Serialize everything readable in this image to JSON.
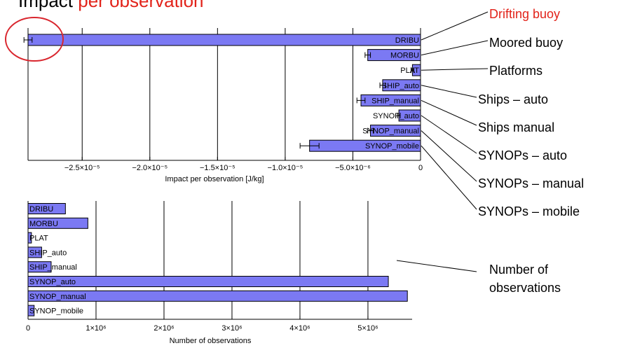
{
  "title": {
    "prefix": "Impact",
    "highlight": "per observation"
  },
  "colors": {
    "bar": "#7b79f3",
    "highlight": "#e2231a",
    "axis": "#000000",
    "circle": "#d9262e"
  },
  "chart_data": [
    {
      "type": "bar",
      "orientation": "horizontal",
      "categories": [
        "DRIBU",
        "MORBU",
        "PLAT",
        "SHIP_auto",
        "SHIP_manual",
        "SYNOP_auto",
        "SYNOP_manual",
        "SYNOP_mobile"
      ],
      "values": [
        -2.9e-05,
        -3.9e-06,
        -6e-07,
        -2.8e-06,
        -4.4e-06,
        -1.6e-06,
        -3.7e-06,
        -8.2e-06
      ],
      "error": [
        3e-07,
        2e-07,
        1e-07,
        2e-07,
        3e-07,
        1e-07,
        2e-07,
        7e-07
      ],
      "xlim": [
        -2.9e-05,
        0
      ],
      "xticks": [
        {
          "value": -2.5e-05,
          "label": "−2.5×10⁻⁵"
        },
        {
          "value": -2e-05,
          "label": "−2.0×10⁻⁵"
        },
        {
          "value": -1.5e-05,
          "label": "−1.5×10⁻⁵"
        },
        {
          "value": -1e-05,
          "label": "−1.0×10⁻⁵"
        },
        {
          "value": -5e-06,
          "label": "−5.0×10⁻⁶"
        },
        {
          "value": 0,
          "label": "0"
        }
      ],
      "xlabel": "Impact per observation [J/kg]",
      "grid": true
    },
    {
      "type": "bar",
      "orientation": "horizontal",
      "categories": [
        "DRIBU",
        "MORBU",
        "PLAT",
        "SHIP_auto",
        "SHIP_manual",
        "SYNOP_auto",
        "SYNOP_manual",
        "SYNOP_mobile"
      ],
      "values": [
        550000,
        880000,
        50000,
        200000,
        340000,
        5300000,
        5580000,
        90000
      ],
      "xlim": [
        0,
        5650000
      ],
      "xticks": [
        {
          "value": 0,
          "label": "0"
        },
        {
          "value": 1000000,
          "label": "1×10⁶"
        },
        {
          "value": 2000000,
          "label": "2×10⁶"
        },
        {
          "value": 3000000,
          "label": "3×10⁶"
        },
        {
          "value": 4000000,
          "label": "4×10⁶"
        },
        {
          "value": 5000000,
          "label": "5×10⁶"
        }
      ],
      "xlabel": "Number of observations",
      "grid": true
    }
  ],
  "annotations": {
    "labels": [
      "Drifting buoy",
      "Moored buoy",
      "Platforms",
      "Ships – auto",
      "Ships manual",
      "SYNOPs – auto",
      "SYNOPs – manual",
      "SYNOPs – mobile"
    ],
    "count_label": [
      "Number of",
      "observations"
    ]
  }
}
